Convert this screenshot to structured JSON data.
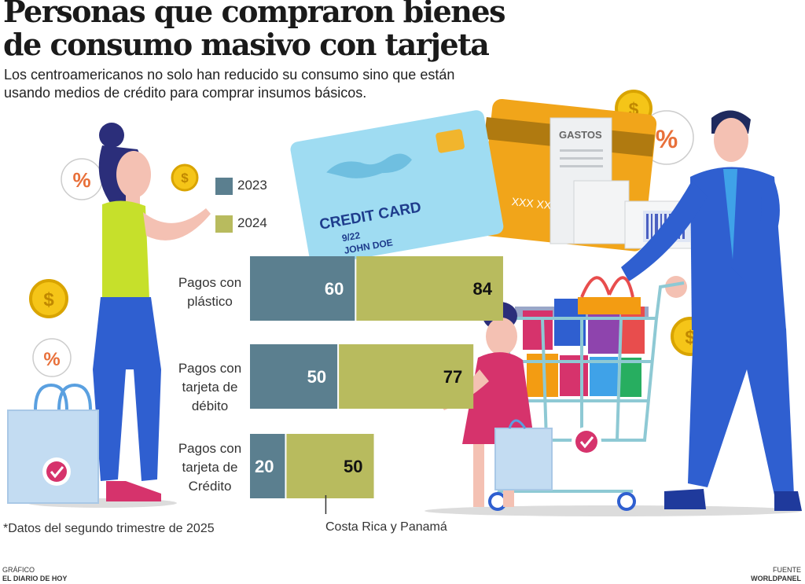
{
  "title_lines": [
    "Personas que compraron bienes",
    "de consumo masivo con tarjeta"
  ],
  "subtitle_lines": [
    "Los centroamericanos no solo han reducido su consumo sino que están",
    "usando medios de crédito para comprar insumos básicos."
  ],
  "footnote": "*Datos del segundo trimestre de 2025",
  "annotation": "Costa Rica y Panamá",
  "credit": {
    "left_label": "GRÁFICO",
    "left_source": "EL DIARIO DE HOY",
    "right_label": "FUENTE",
    "right_source": "WORLDPANEL"
  },
  "illustration_text": {
    "card_title": "CREDIT CARD",
    "card_date": "9/22",
    "card_name": "JOHN DOE",
    "receipt": "GASTOS"
  },
  "colors": {
    "s2023": "#5b7f8f",
    "s2024": "#b8bb5e"
  },
  "chart_data": {
    "type": "bar",
    "orientation": "horizontal",
    "stacked": true,
    "categories": [
      [
        "Pagos con",
        "plástico"
      ],
      [
        "Pagos con",
        "tarjeta de",
        "débito"
      ],
      [
        "Pagos con",
        "tarjeta de",
        "Crédito"
      ]
    ],
    "series": [
      {
        "name": "2023",
        "values": [
          60,
          50,
          20
        ]
      },
      {
        "name": "2024",
        "values": [
          84,
          77,
          50
        ]
      }
    ],
    "legend_position": "top-left"
  }
}
